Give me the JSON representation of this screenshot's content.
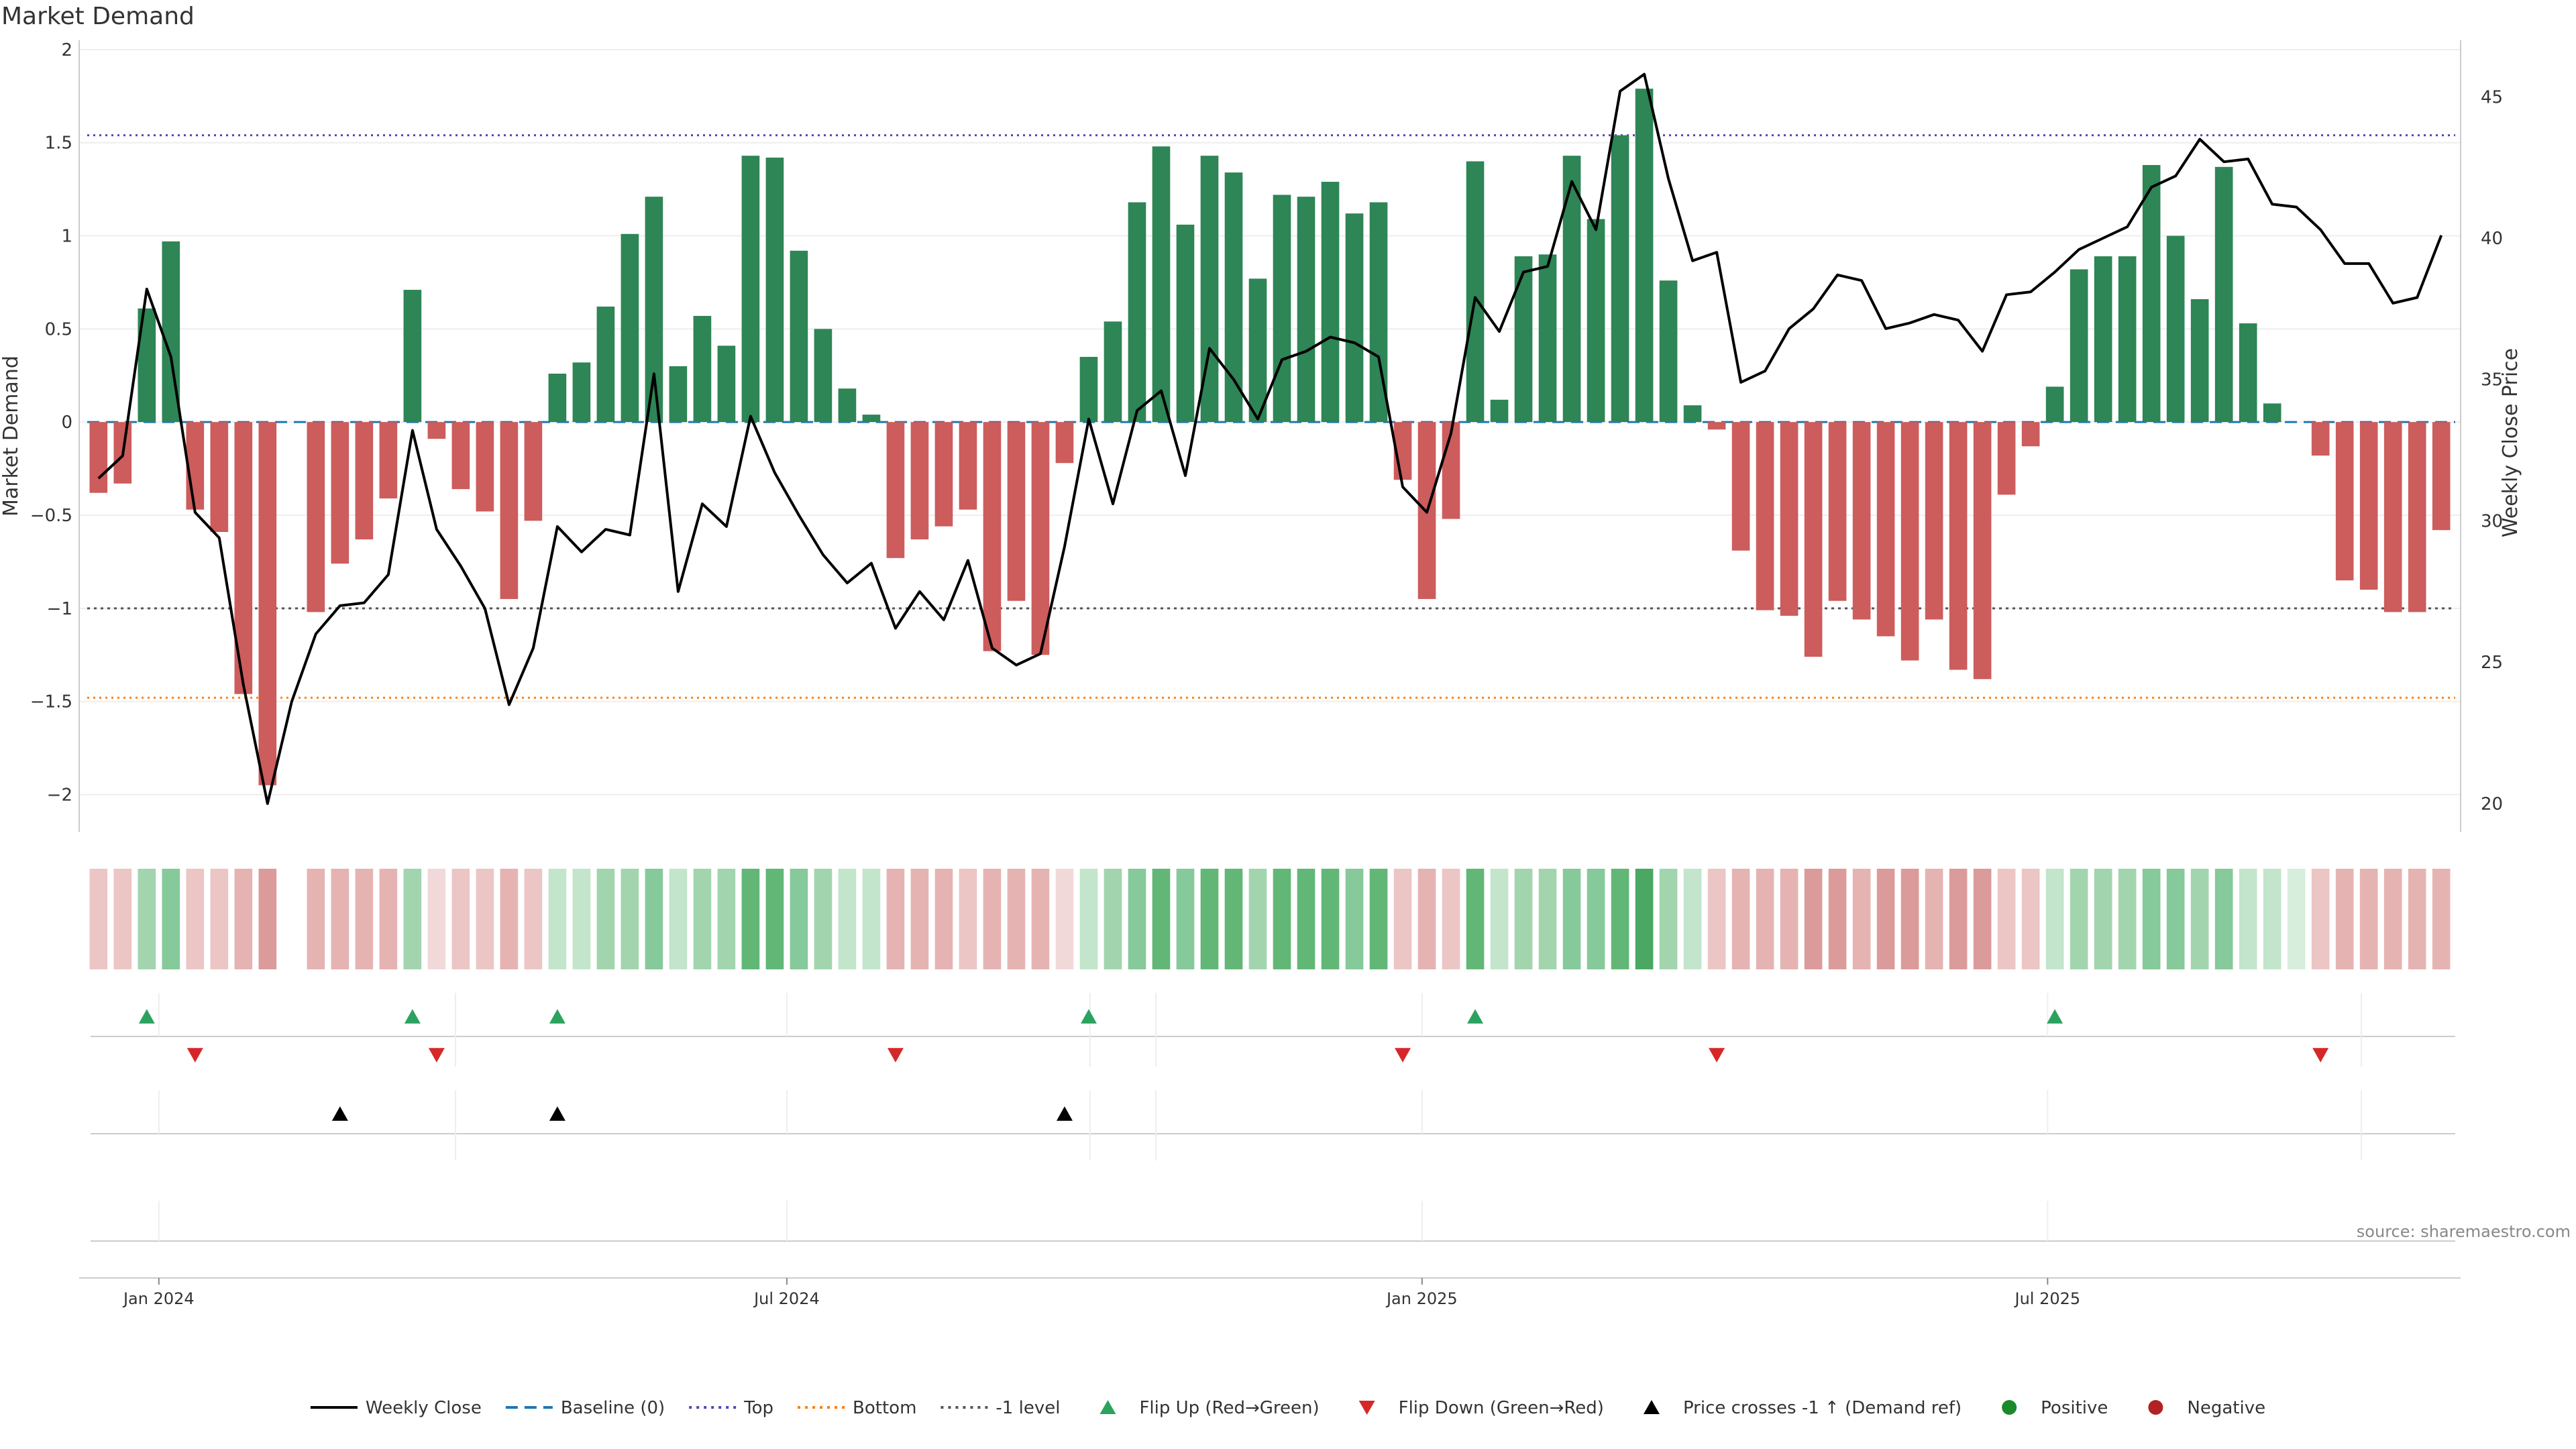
{
  "chart_data": {
    "type": "bar",
    "title": "Market Demand",
    "ylabel": "Market Demand",
    "y2label": "Weekly Close Price",
    "ylim": [
      -2.2,
      2.05
    ],
    "y2lim": [
      19,
      47
    ],
    "yticks": [
      2,
      1.5,
      1,
      0.5,
      0,
      -0.5,
      -1,
      -1.5,
      -2
    ],
    "yticklabels": [
      "2",
      "1.5",
      "1",
      "0.5",
      "0",
      "−0.5",
      "−1",
      "−1.5",
      "−2"
    ],
    "y2ticks": [
      45,
      40,
      35,
      30,
      25,
      20
    ],
    "xticks": [
      {
        "label": "Jan 2024",
        "week": 2.5
      },
      {
        "label": "Jul 2024",
        "week": 28.5
      },
      {
        "label": "Jan 2025",
        "week": 54.8
      },
      {
        "label": "Jul 2025",
        "week": 80.7
      }
    ],
    "reference_lines": {
      "baseline": 0,
      "top": 1.54,
      "bottom": -1.48,
      "minus_one": -1
    },
    "demand": [
      -0.38,
      -0.33,
      0.61,
      0.97,
      -0.47,
      -0.59,
      -1.46,
      -1.95,
      0,
      -1.02,
      -0.76,
      -0.63,
      -0.41,
      0.71,
      -0.09,
      -0.36,
      -0.48,
      -0.95,
      -0.53,
      0.26,
      0.32,
      0.62,
      1.01,
      1.21,
      0.3,
      0.57,
      0.41,
      1.43,
      1.42,
      0.92,
      0.5,
      0.18,
      0.04,
      -0.73,
      -0.63,
      -0.56,
      -0.47,
      -1.23,
      -0.96,
      -1.25,
      -0.22,
      0.35,
      0.54,
      1.18,
      1.48,
      1.06,
      1.43,
      1.34,
      0.77,
      1.22,
      1.21,
      1.29,
      1.12,
      1.18,
      -0.31,
      -0.95,
      -0.52,
      1.4,
      0.12,
      0.89,
      0.9,
      1.43,
      1.09,
      1.54,
      1.79,
      0.76,
      0.09,
      -0.04,
      -0.69,
      -1.01,
      -1.04,
      -1.26,
      -0.96,
      -1.06,
      -1.15,
      -1.28,
      -1.06,
      -1.33,
      -1.38,
      -0.39,
      -0.13,
      0.19,
      0.82,
      0.89,
      0.89,
      1.38,
      1.0,
      0.66,
      1.37,
      0.53,
      0.1,
      0,
      -0.18,
      -0.85,
      -0.9,
      -1.02,
      -1.02,
      -0.58
    ],
    "price": [
      31.5,
      32.3,
      38.2,
      35.8,
      30.3,
      29.4,
      24.2,
      20.0,
      23.6,
      26.0,
      27.0,
      27.1,
      28.1,
      33.2,
      29.7,
      28.4,
      26.9,
      23.5,
      25.5,
      29.8,
      28.9,
      29.7,
      29.5,
      35.2,
      27.5,
      30.6,
      29.8,
      33.7,
      31.7,
      30.2,
      28.8,
      27.8,
      28.5,
      26.2,
      27.5,
      26.5,
      28.6,
      25.5,
      24.9,
      25.3,
      29.1,
      33.6,
      30.6,
      33.9,
      34.6,
      31.6,
      36.1,
      35.0,
      33.6,
      35.7,
      36.0,
      36.5,
      36.3,
      35.8,
      31.2,
      30.3,
      33.1,
      37.9,
      36.7,
      38.8,
      39.0,
      42.0,
      40.3,
      45.2,
      45.8,
      42.1,
      39.2,
      39.5,
      34.9,
      35.3,
      36.8,
      37.5,
      38.7,
      38.5,
      36.8,
      37.0,
      37.3,
      37.1,
      36.0,
      38.0,
      38.1,
      38.8,
      39.6,
      40.0,
      40.4,
      41.8,
      42.2,
      43.5,
      42.7,
      42.8,
      41.2,
      41.1,
      40.3,
      39.1,
      39.1,
      37.7,
      37.9,
      40.1
    ],
    "heat_levels": [
      2,
      2,
      3,
      4,
      2,
      2,
      3,
      4,
      0,
      3,
      3,
      3,
      3,
      3,
      1,
      2,
      2,
      3,
      2,
      2,
      2,
      3,
      3,
      4,
      2,
      3,
      3,
      5,
      5,
      4,
      3,
      2,
      2,
      3,
      3,
      3,
      2,
      3,
      3,
      3,
      1,
      2,
      3,
      4,
      5,
      4,
      5,
      5,
      3,
      5,
      5,
      5,
      4,
      5,
      2,
      3,
      2,
      5,
      2,
      3,
      3,
      4,
      4,
      5,
      6,
      3,
      2,
      2,
      3,
      3,
      3,
      4,
      4,
      3,
      4,
      4,
      3,
      4,
      4,
      2,
      2,
      2,
      3,
      3,
      3,
      4,
      4,
      3,
      4,
      2,
      2,
      1,
      2,
      3,
      3,
      3,
      3,
      3
    ],
    "flip_up_weeks": [
      2,
      13,
      19,
      41,
      57,
      81
    ],
    "flip_down_weeks": [
      4,
      14,
      33,
      54,
      67,
      92
    ],
    "price_cross_weeks": [
      10,
      19,
      40
    ],
    "legend": [
      {
        "label": "Weekly Close",
        "kind": "line",
        "color": "#000000"
      },
      {
        "label": "Baseline (0)",
        "kind": "dash",
        "color": "#1f77b4"
      },
      {
        "label": "Top",
        "kind": "dot",
        "color": "#4a4ab8"
      },
      {
        "label": "Bottom",
        "kind": "dot",
        "color": "#ff7f0e"
      },
      {
        "label": "-1 level",
        "kind": "dot",
        "color": "#555555"
      },
      {
        "label": "Flip Up (Red→Green)",
        "kind": "tri-up",
        "color": "#2ca25f"
      },
      {
        "label": "Flip Down (Green→Red)",
        "kind": "tri-down",
        "color": "#d62728"
      },
      {
        "label": "Price crosses -1 ↑ (Demand ref)",
        "kind": "tri-up",
        "color": "#000000"
      },
      {
        "label": "Positive",
        "kind": "circle",
        "color": "#1a8a2a"
      },
      {
        "label": "Negative",
        "kind": "circle",
        "color": "#b22222"
      }
    ],
    "colors": {
      "positive": "#2e8555",
      "negative": "#cd5c5c",
      "top": "#4a4ab8",
      "bottom": "#ff7f0e",
      "baseline": "#1f77b4"
    }
  },
  "source": "source: sharemaestro.com"
}
